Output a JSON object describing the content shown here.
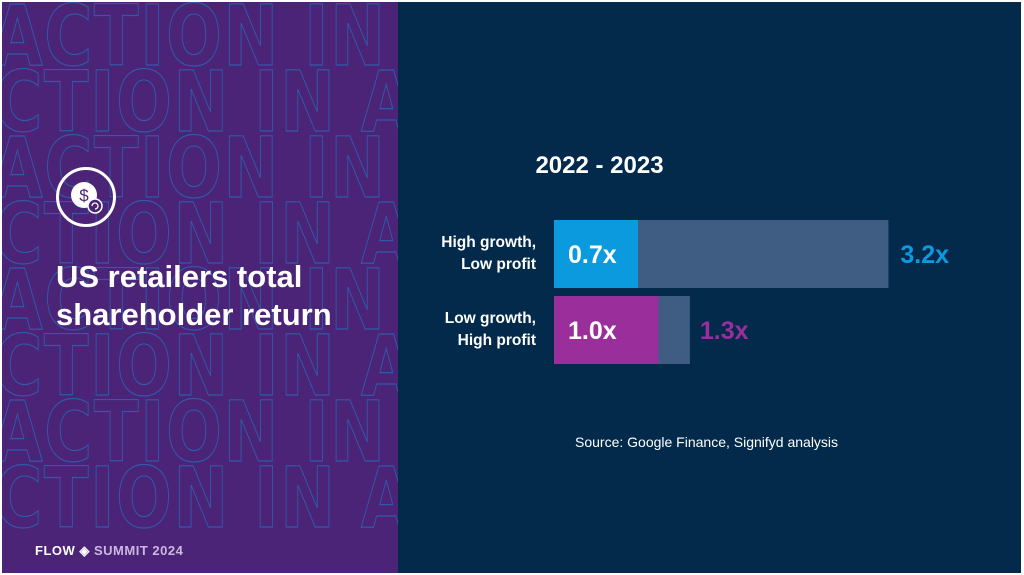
{
  "left_panel": {
    "title_line1": "US retailers total",
    "title_line2": "shareholder return",
    "icon": "dollar-coin-return-icon",
    "watermark": "ACTION IN ACTION IN ACTION IN",
    "logo_flow": "FLOW",
    "logo_summit": "SUMMIT 2024"
  },
  "chart_data": {
    "type": "bar",
    "orientation": "horizontal",
    "title": "2022 - 2023",
    "categories": [
      [
        "High growth,",
        "Low profit"
      ],
      [
        "Low growth,",
        "High profit"
      ]
    ],
    "series": [
      {
        "values": [
          0.7,
          1.0
        ],
        "labels": [
          "0.7x",
          "1.0x"
        ],
        "colors": [
          "#0b9ade",
          "#9a2f9c"
        ]
      },
      {
        "values": [
          3.2,
          1.3
        ],
        "labels": [
          "3.2x",
          "1.3x"
        ],
        "color": "#3f5d82"
      }
    ],
    "source": "Source: Google Finance, Signifyd analysis"
  }
}
